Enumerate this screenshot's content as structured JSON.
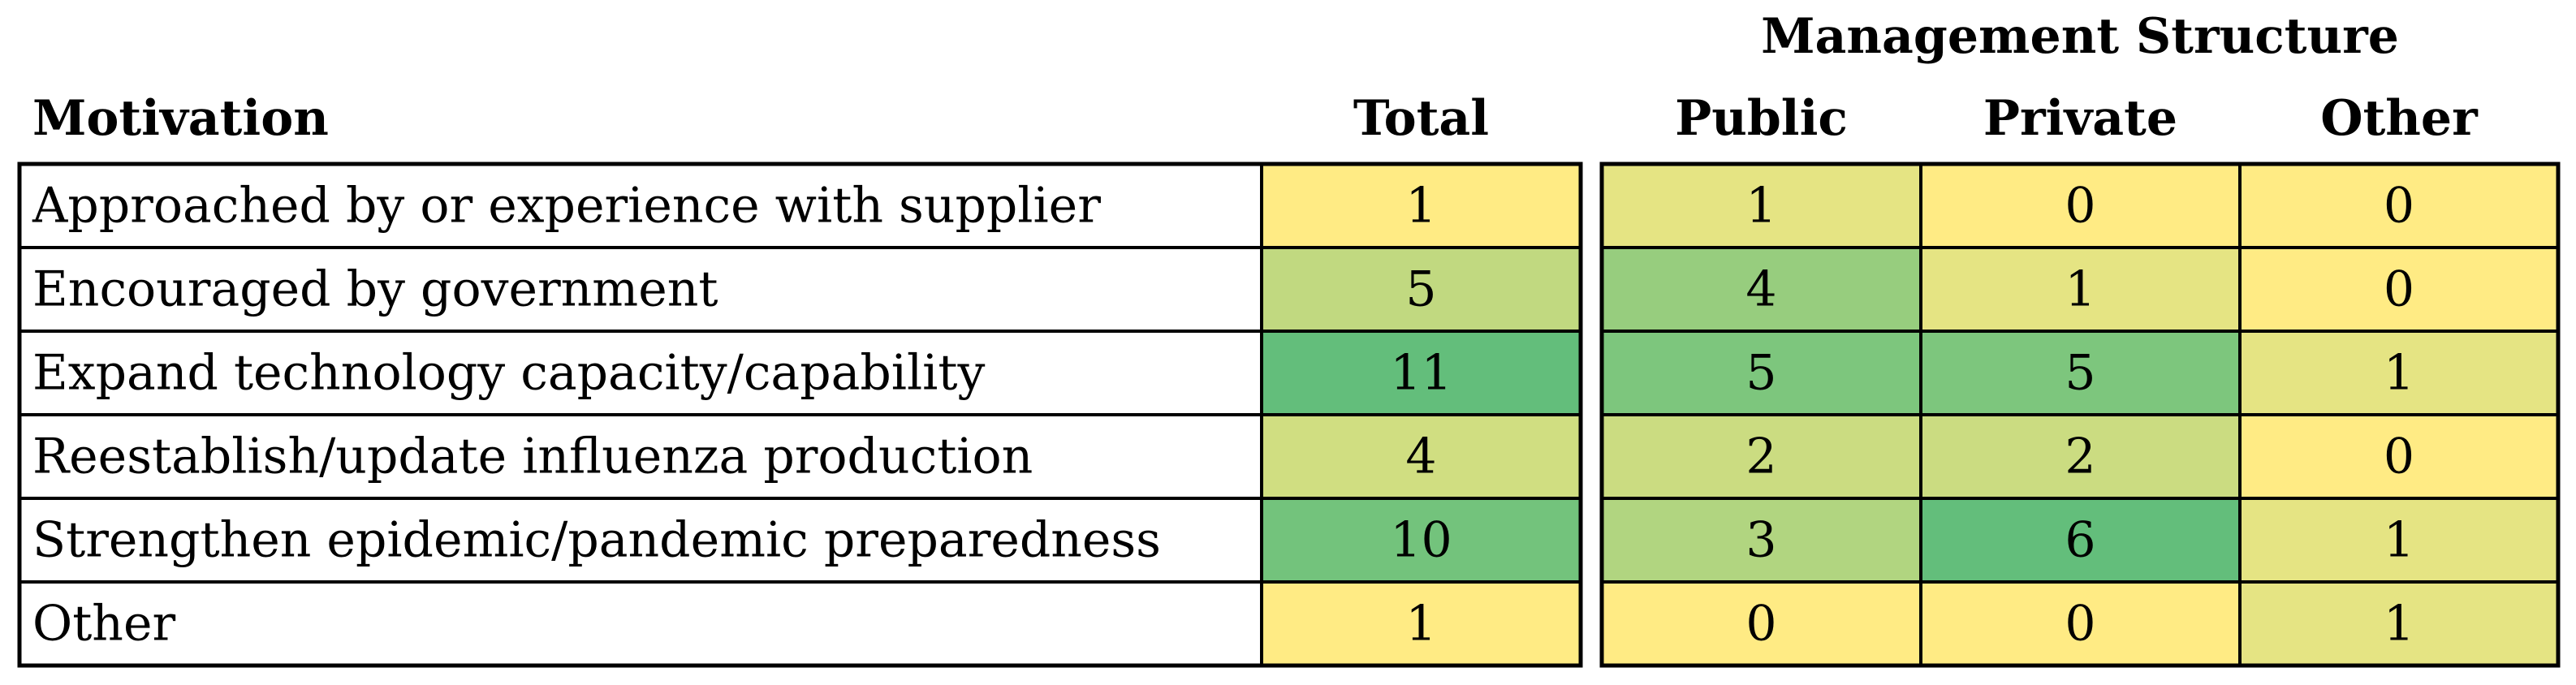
{
  "table": {
    "group_header": "Management Structure",
    "columns": [
      "Motivation",
      "Total",
      "Public",
      "Private",
      "Other"
    ],
    "rows": [
      {
        "label": "Approached by or experience with supplier",
        "values": [
          1,
          1,
          0,
          0
        ]
      },
      {
        "label": "Encouraged by government",
        "values": [
          5,
          4,
          1,
          0
        ]
      },
      {
        "label": "Expand technology capacity/capability",
        "values": [
          11,
          5,
          5,
          1
        ]
      },
      {
        "label": "Reestablish/update influenza production",
        "values": [
          4,
          2,
          2,
          0
        ]
      },
      {
        "label": "Strengthen epidemic/pandemic preparedness",
        "values": [
          10,
          3,
          6,
          1
        ]
      },
      {
        "label": "Other",
        "values": [
          1,
          0,
          0,
          1
        ]
      }
    ]
  },
  "heatmap": {
    "low_color": "#ffeb84",
    "high_color": "#63be7b"
  }
}
